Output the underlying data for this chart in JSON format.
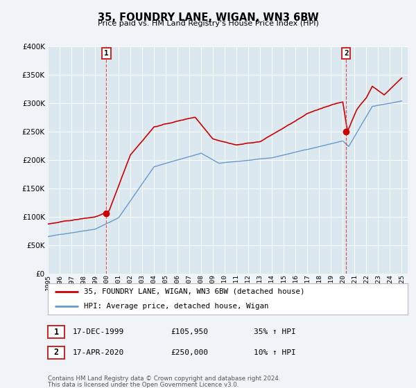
{
  "title": "35, FOUNDRY LANE, WIGAN, WN3 6BW",
  "subtitle": "Price paid vs. HM Land Registry's House Price Index (HPI)",
  "background_color": "#f0f4f8",
  "plot_bg_color": "#dce8f0",
  "grid_color": "#ffffff",
  "ylim": [
    0,
    400000
  ],
  "yticks": [
    0,
    50000,
    100000,
    150000,
    200000,
    250000,
    300000,
    350000,
    400000
  ],
  "ytick_labels": [
    "£0",
    "£50K",
    "£100K",
    "£150K",
    "£200K",
    "£250K",
    "£300K",
    "£350K",
    "£400K"
  ],
  "xlim_start": 1995.0,
  "xlim_end": 2025.5,
  "xtick_years": [
    1995,
    1996,
    1997,
    1998,
    1999,
    2000,
    2001,
    2002,
    2003,
    2004,
    2005,
    2006,
    2007,
    2008,
    2009,
    2010,
    2011,
    2012,
    2013,
    2014,
    2015,
    2016,
    2017,
    2018,
    2019,
    2020,
    2021,
    2022,
    2023,
    2024,
    2025
  ],
  "red_line_color": "#cc0000",
  "blue_line_color": "#6699cc",
  "sale1_x": 1999.96,
  "sale1_y": 105950,
  "sale2_x": 2020.29,
  "sale2_y": 250000,
  "vline_color": "#dd4444",
  "legend_label_red": "35, FOUNDRY LANE, WIGAN, WN3 6BW (detached house)",
  "legend_label_blue": "HPI: Average price, detached house, Wigan",
  "table_row1": [
    "1",
    "17-DEC-1999",
    "£105,950",
    "35% ↑ HPI"
  ],
  "table_row2": [
    "2",
    "17-APR-2020",
    "£250,000",
    "10% ↑ HPI"
  ],
  "footnote1": "Contains HM Land Registry data © Crown copyright and database right 2024.",
  "footnote2": "This data is licensed under the Open Government Licence v3.0."
}
